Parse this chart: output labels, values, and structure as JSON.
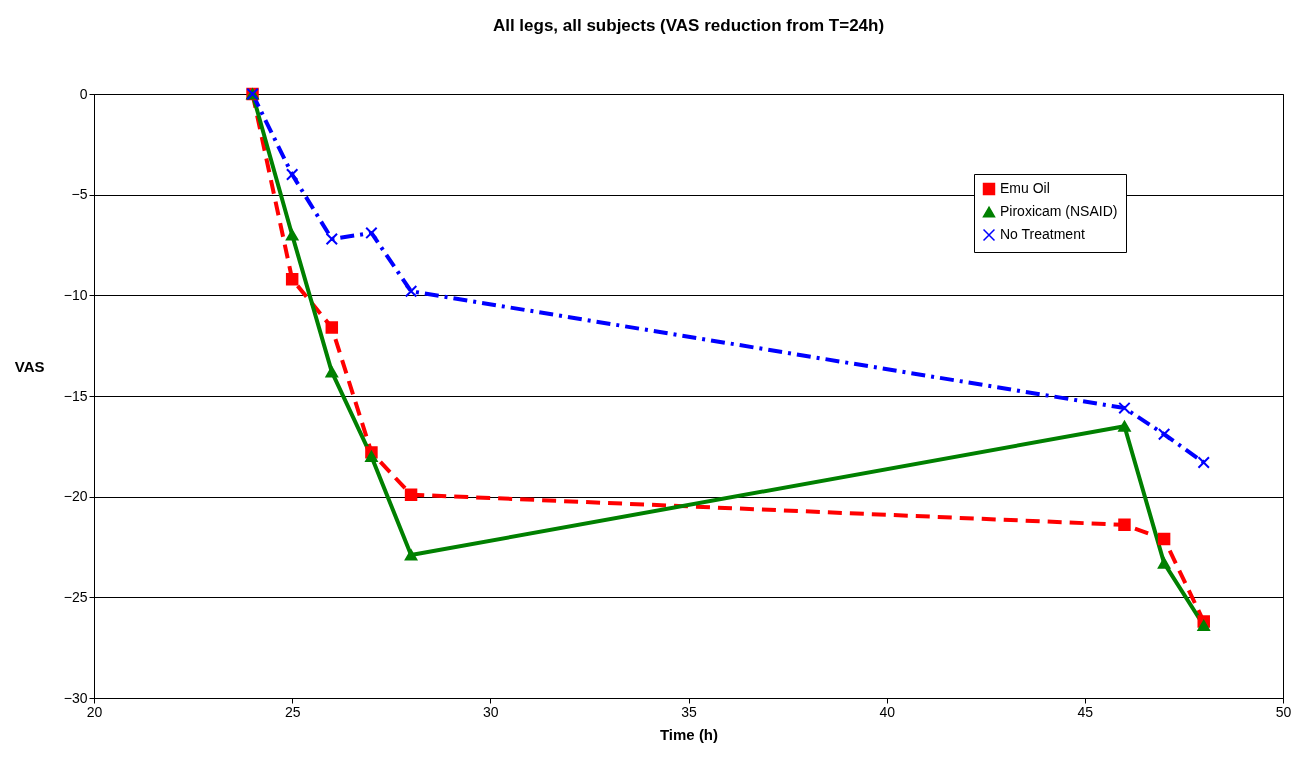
{
  "chart_data": {
    "type": "line",
    "title": "All legs, all subjects (VAS reduction from T=24h)",
    "xlabel": "Time (h)",
    "ylabel": "VAS",
    "x": [
      24,
      25,
      26,
      27,
      28,
      46,
      47,
      48
    ],
    "series": [
      {
        "name": "Emu Oil",
        "color": "#ff0000",
        "marker": "square",
        "line_style": "dashed",
        "values": [
          0,
          -9.2,
          -11.6,
          -17.8,
          -19.9,
          -21.4,
          -22.1,
          -26.2
        ]
      },
      {
        "name": "Piroxicam (NSAID)",
        "color": "#008000",
        "marker": "triangle",
        "line_style": "solid",
        "values": [
          0,
          -7.0,
          -13.8,
          -18.0,
          -22.9,
          -16.5,
          -23.3,
          -26.4
        ]
      },
      {
        "name": "No Treatment",
        "color": "#0000ff",
        "marker": "cross",
        "line_style": "dashdot",
        "values": [
          0,
          -4.0,
          -7.2,
          -6.9,
          -9.8,
          -15.6,
          -16.9,
          -18.3
        ]
      }
    ],
    "xlim": [
      20,
      50
    ],
    "xticks": [
      20,
      25,
      30,
      35,
      40,
      45,
      50
    ],
    "ylim": [
      -30,
      0
    ],
    "yticks": [
      -30,
      -25,
      -20,
      -15,
      -10,
      -5,
      0
    ],
    "grid": "y",
    "legend": "top right"
  }
}
